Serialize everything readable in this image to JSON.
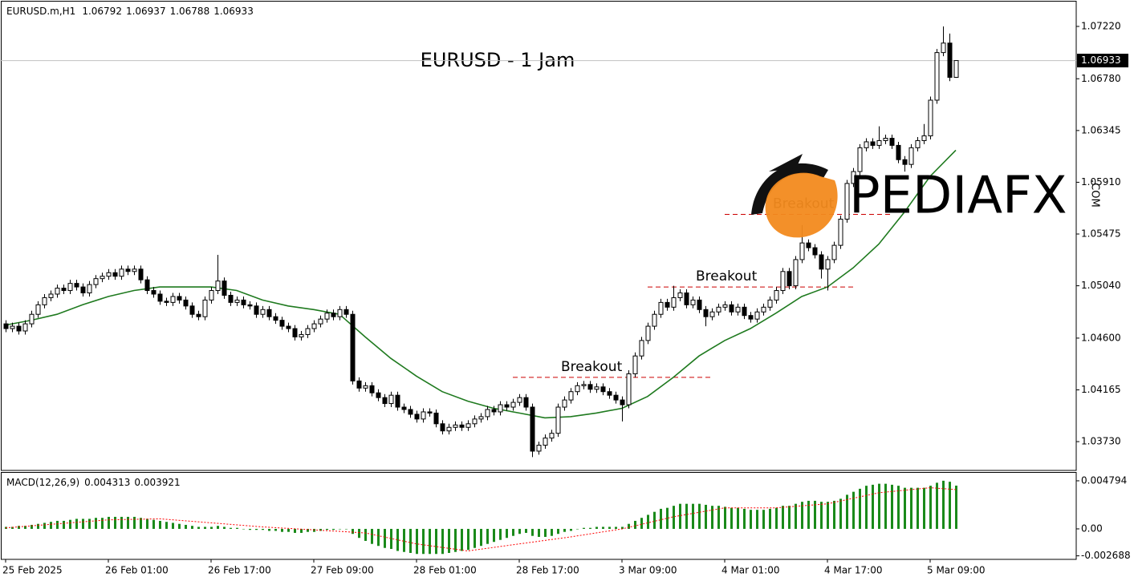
{
  "chart_data": {
    "type": "candlestick",
    "title": "EURUSD - 1 Jam",
    "symbol": "EURUSD.m,H1",
    "open": [
      1.0472,
      1.0468,
      1.047,
      1.0466,
      1.0472,
      1.048,
      1.0488,
      1.0494,
      1.0497,
      1.0502,
      1.05,
      1.0506,
      1.0503,
      1.0498,
      1.0505,
      1.051,
      1.0512,
      1.0515,
      1.0512,
      1.0518,
      1.0516,
      1.0518,
      1.0509,
      1.05,
      1.0497,
      1.0491,
      1.049,
      1.0495,
      1.0492,
      1.0487,
      1.048,
      1.0478,
      1.0492,
      1.05,
      1.0508,
      1.0496,
      1.049,
      1.0492,
      1.0488,
      1.0487,
      1.048,
      1.0484,
      1.0478,
      1.0475,
      1.047,
      1.0468,
      1.0461,
      1.0463,
      1.0468,
      1.0472,
      1.0476,
      1.0481,
      1.0478,
      1.0484,
      1.048,
      1.0424,
      1.0418,
      1.042,
      1.0414,
      1.041,
      1.0405,
      1.0412,
      1.0402,
      1.04,
      1.0396,
      1.0392,
      1.0398,
      1.0397,
      1.0388,
      1.0382,
      1.0385,
      1.0387,
      1.0385,
      1.0388,
      1.0392,
      1.0394,
      1.04,
      1.0398,
      1.0404,
      1.0402,
      1.0406,
      1.041,
      1.0402,
      1.0365,
      1.037,
      1.0376,
      1.038,
      1.0402,
      1.0408,
      1.0415,
      1.042,
      1.0421,
      1.0417,
      1.0419,
      1.0415,
      1.0412,
      1.0408,
      1.0404,
      1.043,
      1.0445,
      1.0458,
      1.047,
      1.048,
      1.049,
      1.0486,
      1.0494,
      1.0498,
      1.0488,
      1.0492,
      1.0484,
      1.0478,
      1.0482,
      1.0486,
      1.0488,
      1.0482,
      1.0486,
      1.0479,
      1.0476,
      1.0482,
      1.0486,
      1.0492,
      1.05,
      1.0516,
      1.0504,
      1.0526,
      1.054,
      1.0536,
      1.053,
      1.0518,
      1.0526,
      1.0538,
      1.056,
      1.059,
      1.06,
      1.062,
      1.0625,
      1.0622,
      1.0626,
      1.0628,
      1.0622,
      1.061,
      1.0606,
      1.062,
      1.0626,
      1.063,
      1.066,
      1.07,
      1.0708,
      1.06792
    ],
    "high": [
      1.0475,
      1.0473,
      1.0473,
      1.0475,
      1.0483,
      1.0491,
      1.0497,
      1.05,
      1.0505,
      1.0505,
      1.0509,
      1.0509,
      1.0506,
      1.0508,
      1.0513,
      1.0515,
      1.0518,
      1.0518,
      1.0521,
      1.0521,
      1.0521,
      1.0521,
      1.0512,
      1.0503,
      1.05,
      1.0494,
      1.0498,
      1.0498,
      1.0495,
      1.049,
      1.0483,
      1.0495,
      1.0503,
      1.053,
      1.0511,
      1.0499,
      1.0495,
      1.0495,
      1.0491,
      1.049,
      1.0487,
      1.0487,
      1.0481,
      1.0478,
      1.0473,
      1.0471,
      1.0466,
      1.0471,
      1.0475,
      1.0479,
      1.0484,
      1.0484,
      1.0487,
      1.0487,
      1.0483,
      1.0427,
      1.0423,
      1.0423,
      1.0417,
      1.0413,
      1.0415,
      1.0415,
      1.0405,
      1.0403,
      1.0399,
      1.0401,
      1.0401,
      1.04,
      1.0391,
      1.0388,
      1.039,
      1.039,
      1.0391,
      1.0395,
      1.0397,
      1.0403,
      1.0403,
      1.0407,
      1.0407,
      1.0409,
      1.0413,
      1.0413,
      1.0405,
      1.0373,
      1.0379,
      1.0383,
      1.0405,
      1.0411,
      1.0418,
      1.0423,
      1.0424,
      1.0424,
      1.0422,
      1.0422,
      1.0418,
      1.0415,
      1.0411,
      1.0433,
      1.0448,
      1.0461,
      1.0473,
      1.0483,
      1.0493,
      1.0493,
      1.0504,
      1.0501,
      1.0501,
      1.0495,
      1.0495,
      1.0487,
      1.0485,
      1.0489,
      1.0491,
      1.0491,
      1.0489,
      1.0489,
      1.0482,
      1.0485,
      1.0489,
      1.0495,
      1.0503,
      1.0519,
      1.0519,
      1.0529,
      1.0555,
      1.0543,
      1.0539,
      1.0533,
      1.0529,
      1.0541,
      1.0563,
      1.0593,
      1.0603,
      1.0623,
      1.0628,
      1.0628,
      1.0638,
      1.0631,
      1.0631,
      1.0625,
      1.0613,
      1.0623,
      1.0629,
      1.064,
      1.0663,
      1.0703,
      1.0722,
      1.0716,
      1.06937
    ],
    "low": [
      1.0465,
      1.0465,
      1.0463,
      1.0463,
      1.0469,
      1.0477,
      1.0485,
      1.0491,
      1.0494,
      1.0497,
      1.0497,
      1.05,
      1.0495,
      1.0495,
      1.0502,
      1.0507,
      1.0509,
      1.0509,
      1.0509,
      1.0513,
      1.0513,
      1.0506,
      1.0497,
      1.0494,
      1.0488,
      1.0487,
      1.0487,
      1.0489,
      1.0484,
      1.0477,
      1.0475,
      1.0475,
      1.0489,
      1.0497,
      1.0493,
      1.0487,
      1.0487,
      1.0485,
      1.0484,
      1.0477,
      1.0477,
      1.0475,
      1.0472,
      1.0467,
      1.0465,
      1.0458,
      1.0458,
      1.046,
      1.0465,
      1.0469,
      1.0473,
      1.0475,
      1.0475,
      1.0477,
      1.0421,
      1.0415,
      1.0415,
      1.0411,
      1.0407,
      1.0402,
      1.0402,
      1.0399,
      1.0397,
      1.0393,
      1.0389,
      1.0389,
      1.0394,
      1.0385,
      1.0379,
      1.0379,
      1.0382,
      1.0382,
      1.0382,
      1.0385,
      1.0389,
      1.0391,
      1.0395,
      1.0395,
      1.0399,
      1.0399,
      1.0403,
      1.0399,
      1.036,
      1.0362,
      1.0367,
      1.0373,
      1.0377,
      1.0399,
      1.0405,
      1.0412,
      1.0417,
      1.0414,
      1.0414,
      1.0412,
      1.0409,
      1.0405,
      1.039,
      1.0401,
      1.0427,
      1.0442,
      1.0455,
      1.0467,
      1.0477,
      1.0483,
      1.0483,
      1.0491,
      1.0485,
      1.0485,
      1.0481,
      1.047,
      1.0475,
      1.0479,
      1.0483,
      1.0479,
      1.0479,
      1.0476,
      1.0473,
      1.0473,
      1.0479,
      1.0483,
      1.0489,
      1.0497,
      1.0501,
      1.0501,
      1.0523,
      1.0533,
      1.0527,
      1.051,
      1.05,
      1.0523,
      1.0535,
      1.0557,
      1.0587,
      1.0597,
      1.0617,
      1.0619,
      1.0619,
      1.0623,
      1.0619,
      1.0607,
      1.06,
      1.0603,
      1.0617,
      1.0623,
      1.0627,
      1.0657,
      1.0697,
      1.0676,
      1.06788
    ],
    "close": [
      1.0468,
      1.047,
      1.0466,
      1.0472,
      1.048,
      1.0488,
      1.0494,
      1.0497,
      1.0502,
      1.05,
      1.0506,
      1.0503,
      1.0498,
      1.0505,
      1.051,
      1.0512,
      1.0515,
      1.0512,
      1.0518,
      1.0516,
      1.0518,
      1.0509,
      1.05,
      1.0497,
      1.0491,
      1.049,
      1.0495,
      1.0492,
      1.0487,
      1.048,
      1.0478,
      1.0492,
      1.05,
      1.0508,
      1.0496,
      1.049,
      1.0492,
      1.0488,
      1.0487,
      1.048,
      1.0484,
      1.0478,
      1.0475,
      1.047,
      1.0468,
      1.0461,
      1.0463,
      1.0468,
      1.0472,
      1.0476,
      1.0481,
      1.0478,
      1.0484,
      1.048,
      1.0424,
      1.0418,
      1.042,
      1.0414,
      1.041,
      1.0405,
      1.0412,
      1.0402,
      1.04,
      1.0396,
      1.0392,
      1.0398,
      1.0397,
      1.0388,
      1.0382,
      1.0385,
      1.0387,
      1.0385,
      1.0388,
      1.0392,
      1.0394,
      1.04,
      1.0398,
      1.0404,
      1.0402,
      1.0406,
      1.041,
      1.0402,
      1.0365,
      1.037,
      1.0376,
      1.038,
      1.0402,
      1.0408,
      1.0415,
      1.042,
      1.0421,
      1.0417,
      1.0419,
      1.0415,
      1.0412,
      1.0408,
      1.0404,
      1.043,
      1.0445,
      1.0458,
      1.047,
      1.048,
      1.049,
      1.0486,
      1.0494,
      1.0498,
      1.0488,
      1.0492,
      1.0484,
      1.0478,
      1.0482,
      1.0486,
      1.0488,
      1.0482,
      1.0486,
      1.0479,
      1.0476,
      1.0482,
      1.0486,
      1.0492,
      1.05,
      1.0516,
      1.0504,
      1.0526,
      1.054,
      1.0536,
      1.053,
      1.0518,
      1.0526,
      1.0538,
      1.056,
      1.059,
      1.06,
      1.062,
      1.0625,
      1.0622,
      1.0626,
      1.0628,
      1.0622,
      1.061,
      1.0606,
      1.062,
      1.0626,
      1.063,
      1.066,
      1.07,
      1.0708,
      1.06792,
      1.06933
    ],
    "xlim": [
      -0.875,
      166.75
    ],
    "xticks": [
      {
        "value": 0,
        "label": "25 Feb 2025"
      },
      {
        "value": 16,
        "label": "26 Feb 01:00"
      },
      {
        "value": 32,
        "label": "26 Feb 17:00"
      },
      {
        "value": 48,
        "label": "27 Feb 09:00"
      },
      {
        "value": 64,
        "label": "28 Feb 01:00"
      },
      {
        "value": 80,
        "label": "28 Feb 17:00"
      },
      {
        "value": 96,
        "label": "3 Mar 09:00"
      },
      {
        "value": 112,
        "label": "4 Mar 01:00"
      },
      {
        "value": 128,
        "label": "4 Mar 17:00"
      },
      {
        "value": 144,
        "label": "5 Mar 09:00"
      }
    ],
    "ylim": [
      1.03488,
      1.07442
    ],
    "yticks": [
      {
        "value": 1.0722,
        "label": "1.07220"
      },
      {
        "value": 1.0678,
        "label": "1.06780"
      },
      1.06345,
      {
        "value": 1.0591,
        "label": "1.05910"
      },
      1.05475,
      {
        "value": 1.0504,
        "label": "1.05040"
      },
      {
        "value": 1.046,
        "label": "1.04600"
      },
      1.04165,
      {
        "value": 1.0373,
        "label": "1.03730"
      }
    ],
    "colors": {
      "bull": "#ffffff",
      "bear": "#000000",
      "outline": "#000000",
      "price_line": "#c0c0c0"
    },
    "ma": {
      "color": "#1f7a1f",
      "x": [
        0,
        4,
        8,
        12,
        16,
        20,
        24,
        28,
        32,
        36,
        40,
        44,
        48,
        52,
        56,
        60,
        64,
        68,
        72,
        76,
        80,
        84,
        88,
        92,
        96,
        100,
        104,
        108,
        112,
        116,
        120,
        124,
        128,
        132,
        136,
        140,
        144,
        148
      ],
      "values": [
        1.0471,
        1.0475,
        1.048,
        1.0488,
        1.0495,
        1.05,
        1.0503,
        1.0503,
        1.0503,
        1.05,
        1.0492,
        1.0487,
        1.0484,
        1.048,
        1.0461,
        1.0443,
        1.0428,
        1.0415,
        1.0407,
        1.0401,
        1.0397,
        1.0393,
        1.0394,
        1.0397,
        1.0401,
        1.0411,
        1.0427,
        1.0445,
        1.0458,
        1.0468,
        1.0481,
        1.0495,
        1.0503,
        1.0519,
        1.0539,
        1.0566,
        1.0596,
        1.0618
      ]
    },
    "annotations": [
      {
        "text": "Breakout",
        "value": 1.0427,
        "from": 79,
        "to": 110,
        "color": "#cc0000"
      },
      {
        "text": "Breakout",
        "value": 1.0503,
        "from": 100,
        "to": 132,
        "color": "#cc0000"
      },
      {
        "text": "Breakout",
        "value": 1.0564,
        "from": 112,
        "to": 138,
        "color": "#cc0000"
      }
    ],
    "watermark": {
      "text": "PEDIAFX",
      "suffix": ".COM"
    },
    "indicator": {
      "type": "macd",
      "name": "MACD(12,26,9)",
      "color": "#1a8a1a",
      "values": [
        0.0002,
        0.0002,
        0.0003,
        0.0003,
        0.0004,
        0.0005,
        0.0006,
        0.0007,
        0.0008,
        0.0008,
        0.0009,
        0.001,
        0.001,
        0.001,
        0.0011,
        0.0011,
        0.0012,
        0.0012,
        0.0012,
        0.0012,
        0.0012,
        0.0011,
        0.001,
        0.0009,
        0.0008,
        0.0007,
        0.0006,
        0.0005,
        0.0004,
        0.0003,
        0.0002,
        0.0002,
        0.0002,
        0.0003,
        0.0002,
        0.0001,
        0.0001,
        0.0,
        -0.0001,
        -0.0001,
        -0.0001,
        -0.0002,
        -0.0002,
        -0.0003,
        -0.0003,
        -0.0004,
        -0.0004,
        -0.0003,
        -0.0003,
        -0.0002,
        -0.0001,
        -0.0001,
        0.0,
        0.0,
        -0.0005,
        -0.0009,
        -0.0012,
        -0.0015,
        -0.0017,
        -0.0019,
        -0.002,
        -0.0022,
        -0.0023,
        -0.0024,
        -0.0025,
        -0.0025,
        -0.0025,
        -0.0025,
        -0.0025,
        -0.0024,
        -0.0023,
        -0.0022,
        -0.0021,
        -0.0019,
        -0.0017,
        -0.0015,
        -0.0013,
        -0.0011,
        -0.0009,
        -0.0007,
        -0.0005,
        -0.0004,
        -0.0007,
        -0.0008,
        -0.0008,
        -0.0007,
        -0.0005,
        -0.0003,
        -0.0002,
        0.0,
        0.0001,
        0.0001,
        0.0002,
        0.0002,
        0.0002,
        0.0002,
        0.0002,
        0.0005,
        0.0008,
        0.0011,
        0.0014,
        0.0017,
        0.002,
        0.0021,
        0.0023,
        0.0025,
        0.0025,
        0.0025,
        0.0025,
        0.0024,
        0.0023,
        0.0023,
        0.0022,
        0.0021,
        0.0021,
        0.002,
        0.0019,
        0.0019,
        0.0019,
        0.002,
        0.0021,
        0.0023,
        0.0023,
        0.0025,
        0.0027,
        0.0028,
        0.0028,
        0.0027,
        0.0027,
        0.0028,
        0.003,
        0.0034,
        0.0037,
        0.004,
        0.0043,
        0.0044,
        0.0045,
        0.0045,
        0.0044,
        0.0043,
        0.0041,
        0.0041,
        0.0041,
        0.0041,
        0.0043,
        0.0046,
        0.0048,
        0.0047,
        0.004313
      ],
      "signal": {
        "color": "#ff0000",
        "x": [
          0,
          8,
          16,
          24,
          32,
          40,
          48,
          56,
          64,
          72,
          80,
          88,
          96,
          104,
          112,
          120,
          128,
          136,
          144,
          148
        ],
        "values": [
          0.0001,
          0.0005,
          0.0009,
          0.001,
          0.0006,
          0.0002,
          -0.0001,
          -0.0004,
          -0.0015,
          -0.0022,
          -0.0015,
          -0.0008,
          0.0,
          0.0012,
          0.0021,
          0.0021,
          0.0025,
          0.0036,
          0.0041,
          0.003921
        ]
      },
      "ylim": [
        -0.00304,
        0.00567
      ],
      "yticks": [
        0.004794,
        {
          "value": 0,
          "label": "0.00"
        },
        -0.002688
      ]
    }
  }
}
